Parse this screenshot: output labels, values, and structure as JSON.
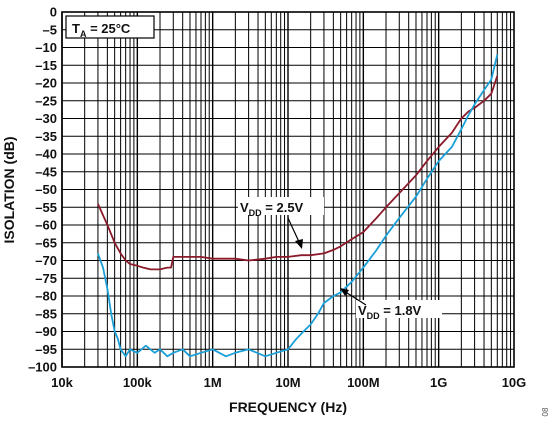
{
  "chart_data": {
    "type": "line",
    "xlabel": "FREQUENCY (Hz)",
    "ylabel": "ISOLATION (dB)",
    "x_scale": "log",
    "xlim": [
      10000,
      10000000000
    ],
    "ylim": [
      -100,
      0
    ],
    "grid": true,
    "x_ticks": [
      {
        "value": 10000,
        "label": "10k"
      },
      {
        "value": 100000,
        "label": "100k"
      },
      {
        "value": 1000000,
        "label": "1M"
      },
      {
        "value": 10000000,
        "label": "10M"
      },
      {
        "value": 100000000,
        "label": "100M"
      },
      {
        "value": 1000000000,
        "label": "1G"
      },
      {
        "value": 10000000000,
        "label": "10G"
      }
    ],
    "y_ticks": [
      {
        "value": 0,
        "label": "0"
      },
      {
        "value": -5,
        "label": "–5"
      },
      {
        "value": -10,
        "label": "–10"
      },
      {
        "value": -15,
        "label": "–15"
      },
      {
        "value": -20,
        "label": "–20"
      },
      {
        "value": -25,
        "label": "–25"
      },
      {
        "value": -30,
        "label": "–30"
      },
      {
        "value": -35,
        "label": "–35"
      },
      {
        "value": -40,
        "label": "–40"
      },
      {
        "value": -45,
        "label": "–45"
      },
      {
        "value": -50,
        "label": "–50"
      },
      {
        "value": -55,
        "label": "–55"
      },
      {
        "value": -60,
        "label": "–60"
      },
      {
        "value": -65,
        "label": "–65"
      },
      {
        "value": -70,
        "label": "–70"
      },
      {
        "value": -75,
        "label": "–75"
      },
      {
        "value": -80,
        "label": "–80"
      },
      {
        "value": -85,
        "label": "–85"
      },
      {
        "value": -90,
        "label": "–90"
      },
      {
        "value": -95,
        "label": "–95"
      },
      {
        "value": -100,
        "label": "–100"
      }
    ],
    "annotations": [
      {
        "main": "T",
        "sub": "A",
        "rest": " = 25°C"
      },
      {
        "main": "V",
        "sub": "DD",
        "rest": " = 2.5V"
      },
      {
        "main": "V",
        "sub": "DD",
        "rest": " = 1.8V"
      }
    ],
    "side_code": "08",
    "series": [
      {
        "color": "#8b1a2b",
        "x": [
          30000,
          40000,
          50000,
          60000,
          70000,
          80000,
          100000,
          120000,
          150000,
          200000,
          250000,
          280000,
          300000,
          400000,
          500000,
          700000,
          1000000,
          1500000,
          2000000,
          3000000,
          5000000,
          7000000,
          10000000,
          15000000,
          20000000,
          30000000,
          40000000,
          50000000,
          70000000,
          100000000,
          150000000,
          200000000,
          300000000,
          500000000,
          700000000,
          1000000000,
          1500000000,
          2000000000,
          2500000000,
          3000000000,
          4000000000,
          5000000000,
          6000000000
        ],
        "y": [
          -54,
          -60,
          -65,
          -68,
          -70,
          -71,
          -71.5,
          -72,
          -72.5,
          -72.5,
          -72,
          -72,
          -69,
          -69,
          -69,
          -69,
          -69.5,
          -69.5,
          -69.5,
          -70,
          -69.5,
          -69,
          -69,
          -68.5,
          -68.5,
          -68,
          -67,
          -66,
          -64,
          -62,
          -58,
          -55,
          -51,
          -46,
          -42,
          -38,
          -34,
          -30,
          -28,
          -27,
          -25,
          -23,
          -18
        ]
      },
      {
        "color": "#1ba0d8",
        "x": [
          30000,
          35000,
          40000,
          45000,
          50000,
          55000,
          60000,
          70000,
          80000,
          100000,
          130000,
          170000,
          200000,
          250000,
          300000,
          400000,
          500000,
          700000,
          1000000,
          1500000,
          2000000,
          3000000,
          5000000,
          7000000,
          10000000,
          13000000,
          16000000,
          20000000,
          25000000,
          30000000,
          40000000,
          50000000,
          70000000,
          100000000,
          150000000,
          200000000,
          300000000,
          500000000,
          700000000,
          1000000000,
          1500000000,
          2000000000,
          2500000000,
          3000000000,
          4000000000,
          5000000000,
          6000000000
        ],
        "y": [
          -68,
          -72,
          -78,
          -85,
          -90,
          -92,
          -95,
          -97,
          -95,
          -96,
          -94,
          -96,
          -95,
          -97,
          -96,
          -95,
          -97,
          -96,
          -95,
          -97,
          -96,
          -95,
          -97,
          -96,
          -95,
          -92,
          -90,
          -88,
          -85,
          -82,
          -80,
          -79,
          -76,
          -72,
          -67,
          -63,
          -58,
          -52,
          -47,
          -42,
          -38,
          -33,
          -29,
          -26,
          -22,
          -19,
          -12
        ]
      }
    ]
  }
}
